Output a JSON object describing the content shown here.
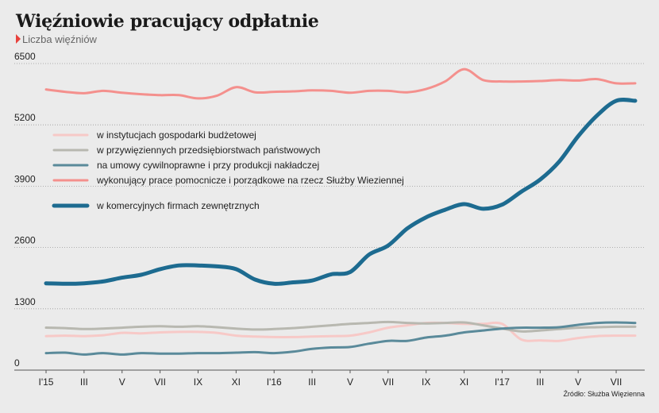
{
  "chart_data": {
    "type": "line",
    "title": "Więźniowie pracujący odpłatnie",
    "subtitle": "Liczba więźniów",
    "source": "Źródło: Służba Więzienna",
    "ylim": [
      0,
      6500
    ],
    "yticks": [
      0,
      1300,
      2600,
      3900,
      5200,
      6500
    ],
    "x_tick_labels": [
      "I'15",
      "III",
      "V",
      "VII",
      "IX",
      "XI",
      "I'16",
      "III",
      "V",
      "VII",
      "IX",
      "XI",
      "I'17",
      "III",
      "V",
      "VII"
    ],
    "grid": true,
    "legend_position": "upper-left",
    "series": [
      {
        "name": "w instytucjach gospodarki budżetowej",
        "color": "#f7c9c7",
        "width": 3,
        "values": [
          720,
          730,
          720,
          740,
          790,
          780,
          800,
          810,
          810,
          790,
          730,
          710,
          700,
          700,
          710,
          720,
          730,
          800,
          900,
          950,
          1000,
          1000,
          980,
          980,
          980,
          650,
          630,
          620,
          680,
          720,
          730,
          730
        ]
      },
      {
        "name": "w przywięziennych przedsiębiorstwach państwowych",
        "color": "#b8b8b0",
        "width": 3,
        "values": [
          900,
          890,
          870,
          880,
          900,
          920,
          930,
          920,
          930,
          910,
          880,
          860,
          870,
          890,
          920,
          950,
          980,
          1000,
          1020,
          1000,
          990,
          1000,
          1010,
          950,
          880,
          820,
          840,
          870,
          900,
          910,
          920,
          920
        ]
      },
      {
        "name": "na umowy cywilnoprawne i przy produkcji nakładczej",
        "color": "#5a8a9a",
        "width": 3,
        "values": [
          360,
          370,
          330,
          360,
          330,
          360,
          350,
          350,
          360,
          360,
          370,
          380,
          360,
          390,
          450,
          480,
          490,
          560,
          620,
          620,
          690,
          730,
          800,
          840,
          880,
          900,
          900,
          910,
          960,
          1000,
          1010,
          1000
        ]
      },
      {
        "name": "wykonujący prace pomocnicze i porządkowe na rzecz Służby Wieziennej",
        "color": "#f4908d",
        "width": 3,
        "values": [
          5950,
          5900,
          5870,
          5920,
          5880,
          5850,
          5830,
          5830,
          5760,
          5820,
          6000,
          5890,
          5900,
          5910,
          5930,
          5920,
          5880,
          5920,
          5920,
          5890,
          5960,
          6120,
          6380,
          6150,
          6120,
          6120,
          6130,
          6150,
          6140,
          6170,
          6080,
          6080
        ]
      },
      {
        "name": "w komercyjnych firmach zewnętrznych",
        "color": "#1d6b90",
        "width": 5,
        "values": [
          1840,
          1830,
          1840,
          1880,
          1960,
          2020,
          2140,
          2220,
          2220,
          2200,
          2140,
          1920,
          1830,
          1860,
          1900,
          2030,
          2080,
          2450,
          2640,
          3000,
          3240,
          3400,
          3520,
          3420,
          3510,
          3780,
          4040,
          4420,
          4960,
          5400,
          5710,
          5710
        ]
      }
    ]
  }
}
